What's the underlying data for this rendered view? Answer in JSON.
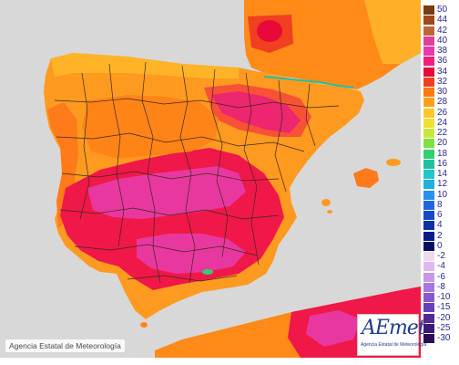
{
  "copyright": "Agencia Estatal de Meteorología",
  "logo": {
    "text": "AEmet",
    "subtitle": "Agencia Estatal de Meteorología"
  },
  "legend": {
    "unit": "",
    "levels": [
      {
        "label": "50",
        "color": "#7a3a12"
      },
      {
        "label": "44",
        "color": "#a0481c"
      },
      {
        "label": "42",
        "color": "#c0643a"
      },
      {
        "label": "40",
        "color": "#e0409a"
      },
      {
        "label": "38",
        "color": "#e83aa8"
      },
      {
        "label": "36",
        "color": "#f0207a"
      },
      {
        "label": "34",
        "color": "#e8083a"
      },
      {
        "label": "32",
        "color": "#f04020"
      },
      {
        "label": "30",
        "color": "#ff7a10"
      },
      {
        "label": "28",
        "color": "#ffa018"
      },
      {
        "label": "26",
        "color": "#ffc828"
      },
      {
        "label": "24",
        "color": "#f0e030"
      },
      {
        "label": "22",
        "color": "#c8e838"
      },
      {
        "label": "20",
        "color": "#80e040"
      },
      {
        "label": "18",
        "color": "#30d070"
      },
      {
        "label": "16",
        "color": "#20c0a0"
      },
      {
        "label": "14",
        "color": "#20c8c8"
      },
      {
        "label": "12",
        "color": "#20b0e0"
      },
      {
        "label": "10",
        "color": "#2890f0"
      },
      {
        "label": "8",
        "color": "#2068e0"
      },
      {
        "label": "6",
        "color": "#1848c8"
      },
      {
        "label": "4",
        "color": "#1030a8"
      },
      {
        "label": "2",
        "color": "#0a1c88"
      },
      {
        "label": "0",
        "color": "#061060"
      },
      {
        "label": "-2",
        "color": "#f0d8f0"
      },
      {
        "label": "-4",
        "color": "#e0b8f0"
      },
      {
        "label": "-6",
        "color": "#c898e8"
      },
      {
        "label": "-8",
        "color": "#a878e0"
      },
      {
        "label": "-10",
        "color": "#8858d0"
      },
      {
        "label": "-15",
        "color": "#6840b8"
      },
      {
        "label": "-20",
        "color": "#502898"
      },
      {
        "label": "-25",
        "color": "#381878"
      },
      {
        "label": "-30",
        "color": "#280c58"
      }
    ]
  },
  "colors": {
    "sea": "#d8d8d8",
    "land_base": "#ff9a20",
    "land_warm": "#ff6a18",
    "hot": "#f01848",
    "very_hot": "#e838a0",
    "cool": "#ffc030",
    "borders": "#3a2a1a"
  }
}
